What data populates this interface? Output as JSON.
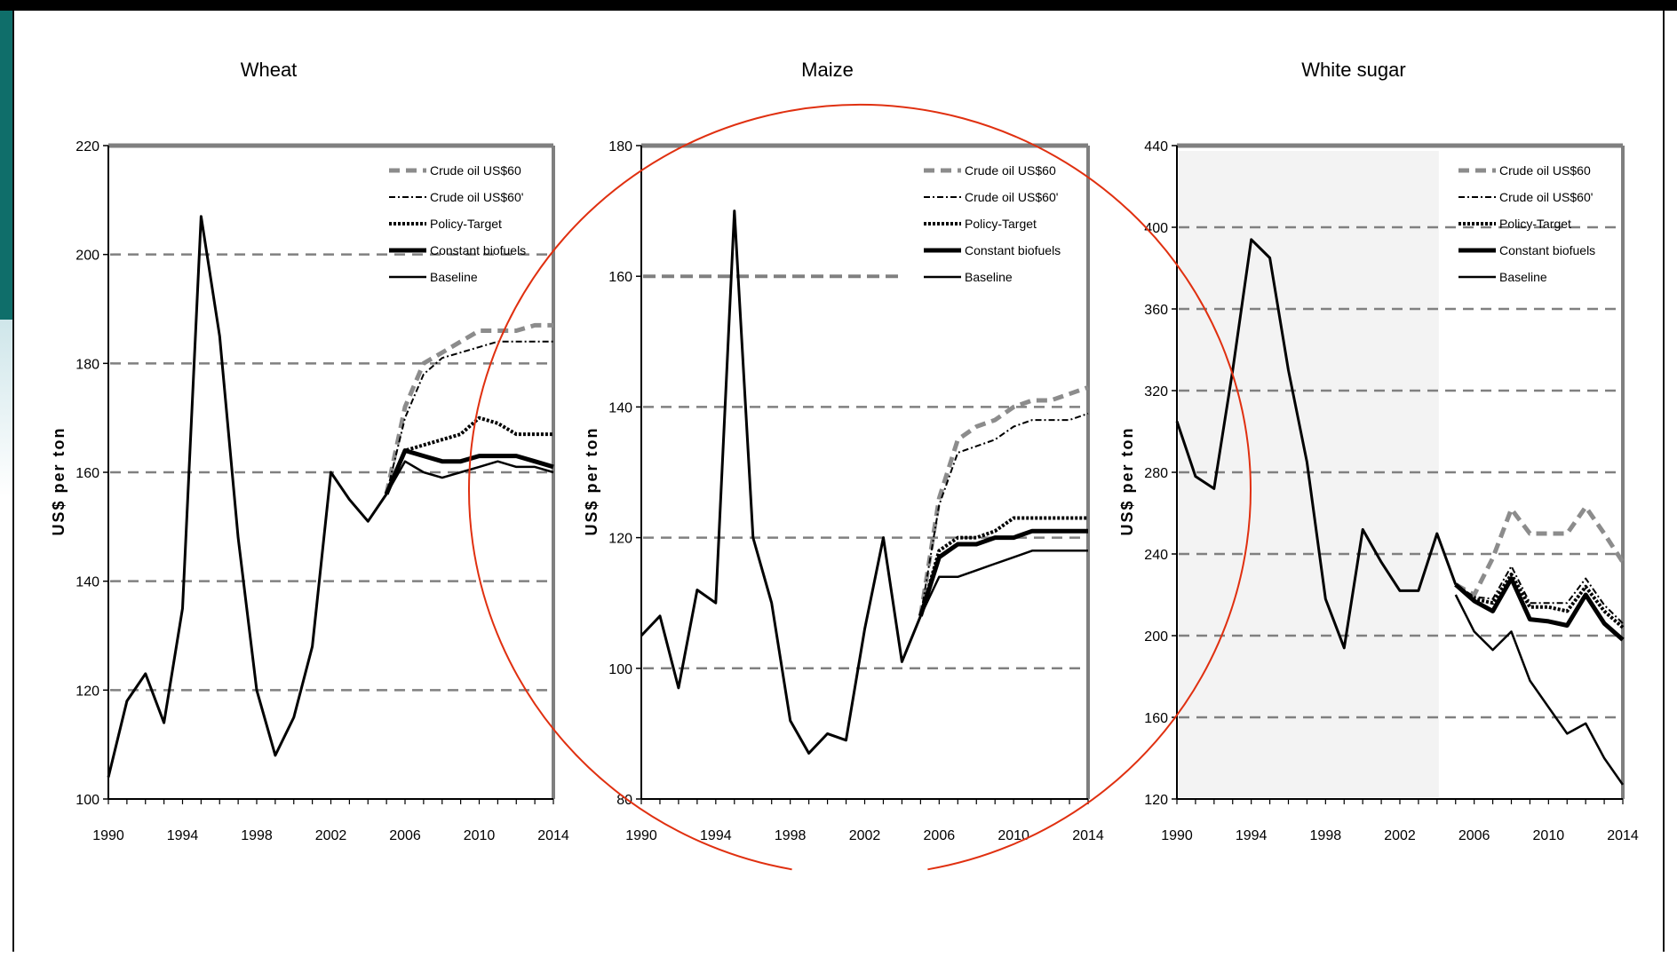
{
  "chart_data": [
    {
      "type": "line",
      "title": "Wheat",
      "ylabel": "US$ per ton",
      "xlabel": "",
      "xlim": [
        1990,
        2014
      ],
      "ylim": [
        100,
        220
      ],
      "x_ticks": [
        1990,
        1994,
        1998,
        2002,
        2006,
        2010,
        2014
      ],
      "y_ticks": [
        100,
        120,
        140,
        160,
        180,
        200,
        220
      ],
      "grid_lines": [
        120,
        140,
        160,
        180,
        200
      ],
      "legend_position": "top-right",
      "history": {
        "x": [
          1990,
          1991,
          1992,
          1993,
          1994,
          1995,
          1996,
          1997,
          1998,
          1999,
          2000,
          2001,
          2002,
          2003,
          2004,
          2005
        ],
        "y": [
          104,
          118,
          123,
          114,
          135,
          207,
          185,
          148,
          120,
          108,
          115,
          128,
          160,
          155,
          151,
          156
        ]
      },
      "series": [
        {
          "name": "Crude oil US$60",
          "style": "dashed-gray",
          "x": [
            2005,
            2006,
            2007,
            2008,
            2009,
            2010,
            2011,
            2012,
            2013,
            2014
          ],
          "y": [
            156,
            172,
            180,
            182,
            184,
            186,
            186,
            186,
            187,
            187
          ]
        },
        {
          "name": "Crude oil US$60'",
          "style": "dash-dot",
          "x": [
            2005,
            2006,
            2007,
            2008,
            2009,
            2010,
            2011,
            2012,
            2013,
            2014
          ],
          "y": [
            156,
            170,
            178,
            181,
            182,
            183,
            184,
            184,
            184,
            184
          ]
        },
        {
          "name": "Policy-Target",
          "style": "dotted",
          "x": [
            2005,
            2006,
            2007,
            2008,
            2009,
            2010,
            2011,
            2012,
            2013,
            2014
          ],
          "y": [
            156,
            164,
            165,
            166,
            167,
            170,
            169,
            167,
            167,
            167
          ]
        },
        {
          "name": "Constant biofuels",
          "style": "thick",
          "x": [
            2005,
            2006,
            2007,
            2008,
            2009,
            2010,
            2011,
            2012,
            2013,
            2014
          ],
          "y": [
            156,
            164,
            163,
            162,
            162,
            163,
            163,
            163,
            162,
            161
          ]
        },
        {
          "name": "Baseline",
          "style": "solid",
          "x": [
            2005,
            2006,
            2007,
            2008,
            2009,
            2010,
            2011,
            2012,
            2013,
            2014
          ],
          "y": [
            156,
            162,
            160,
            159,
            160,
            161,
            162,
            161,
            161,
            160
          ]
        }
      ]
    },
    {
      "type": "line",
      "title": "Maize",
      "ylabel": "US$ per ton",
      "xlabel": "",
      "xlim": [
        1990,
        2014
      ],
      "ylim": [
        80,
        180
      ],
      "x_ticks": [
        1990,
        1994,
        1998,
        2002,
        2006,
        2010,
        2014
      ],
      "y_ticks": [
        80,
        100,
        120,
        140,
        160,
        180
      ],
      "grid_lines": [
        100,
        120,
        140
      ],
      "grid_partial": {
        "y": 160,
        "x_end": 2004
      },
      "legend_position": "top-right",
      "history": {
        "x": [
          1990,
          1991,
          1992,
          1993,
          1994,
          1995,
          1996,
          1997,
          1998,
          1999,
          2000,
          2001,
          2002,
          2003,
          2004,
          2005
        ],
        "y": [
          105,
          108,
          97,
          112,
          110,
          170,
          120,
          110,
          92,
          87,
          90,
          89,
          106,
          120,
          101,
          108
        ]
      },
      "series": [
        {
          "name": "Crude oil US$60",
          "style": "dashed-gray",
          "x": [
            2005,
            2006,
            2007,
            2008,
            2009,
            2010,
            2011,
            2012,
            2013,
            2014
          ],
          "y": [
            108,
            126,
            135,
            137,
            138,
            140,
            141,
            141,
            142,
            143
          ]
        },
        {
          "name": "Crude oil US$60'",
          "style": "dash-dot",
          "x": [
            2005,
            2006,
            2007,
            2008,
            2009,
            2010,
            2011,
            2012,
            2013,
            2014
          ],
          "y": [
            108,
            125,
            133,
            134,
            135,
            137,
            138,
            138,
            138,
            139
          ]
        },
        {
          "name": "Policy-Target",
          "style": "dotted",
          "x": [
            2005,
            2006,
            2007,
            2008,
            2009,
            2010,
            2011,
            2012,
            2013,
            2014
          ],
          "y": [
            108,
            118,
            120,
            120,
            121,
            123,
            123,
            123,
            123,
            123
          ]
        },
        {
          "name": "Constant biofuels",
          "style": "thick",
          "x": [
            2005,
            2006,
            2007,
            2008,
            2009,
            2010,
            2011,
            2012,
            2013,
            2014
          ],
          "y": [
            108,
            117,
            119,
            119,
            120,
            120,
            121,
            121,
            121,
            121
          ]
        },
        {
          "name": "Baseline",
          "style": "solid",
          "x": [
            2005,
            2006,
            2007,
            2008,
            2009,
            2010,
            2011,
            2012,
            2013,
            2014
          ],
          "y": [
            108,
            114,
            114,
            115,
            116,
            117,
            118,
            118,
            118,
            118
          ]
        }
      ]
    },
    {
      "type": "line",
      "title": "White sugar",
      "ylabel": "US$ per ton",
      "xlabel": "",
      "xlim": [
        1990,
        2014
      ],
      "ylim": [
        120,
        440
      ],
      "x_ticks": [
        1990,
        1994,
        1998,
        2002,
        2006,
        2010,
        2014
      ],
      "y_ticks": [
        120,
        160,
        200,
        240,
        280,
        320,
        360,
        400,
        440
      ],
      "grid_lines": [
        160,
        200,
        240,
        280,
        320,
        360,
        400
      ],
      "legend_position": "top-right",
      "history": {
        "x": [
          1990,
          1991,
          1992,
          1993,
          1994,
          1995,
          1996,
          1997,
          1998,
          1999,
          2000,
          2001,
          2002,
          2003,
          2004,
          2005
        ],
        "y": [
          305,
          278,
          272,
          330,
          394,
          385,
          330,
          285,
          218,
          194,
          252,
          236,
          222,
          222,
          250,
          225
        ]
      },
      "series": [
        {
          "name": "Crude oil US$60",
          "style": "dashed-gray",
          "x": [
            2005,
            2006,
            2007,
            2008,
            2009,
            2010,
            2011,
            2012,
            2013,
            2014
          ],
          "y": [
            225,
            220,
            238,
            262,
            250,
            250,
            250,
            263,
            250,
            236
          ]
        },
        {
          "name": "Crude oil US$60'",
          "style": "dash-dot",
          "x": [
            2005,
            2006,
            2007,
            2008,
            2009,
            2010,
            2011,
            2012,
            2013,
            2014
          ],
          "y": [
            225,
            219,
            218,
            234,
            216,
            216,
            216,
            228,
            215,
            206
          ]
        },
        {
          "name": "Policy-Target",
          "style": "dotted",
          "x": [
            2005,
            2006,
            2007,
            2008,
            2009,
            2010,
            2011,
            2012,
            2013,
            2014
          ],
          "y": [
            225,
            218,
            216,
            230,
            214,
            214,
            212,
            224,
            212,
            204
          ]
        },
        {
          "name": "Constant biofuels",
          "style": "thick",
          "x": [
            2005,
            2006,
            2007,
            2008,
            2009,
            2010,
            2011,
            2012,
            2013,
            2014
          ],
          "y": [
            225,
            217,
            212,
            228,
            208,
            207,
            205,
            220,
            206,
            198
          ]
        },
        {
          "name": "Baseline",
          "style": "solid",
          "x": [
            2005,
            2006,
            2007,
            2008,
            2009,
            2010,
            2011,
            2012,
            2013,
            2014
          ],
          "y": [
            220,
            202,
            193,
            202,
            178,
            165,
            152,
            157,
            140,
            127
          ]
        }
      ]
    }
  ],
  "colors": {
    "frame": "#000000",
    "accent_bar": "#0f6e6a",
    "plot_border": "#7f7f7f",
    "grid": "#808080",
    "annotation_circle": "#e03010"
  }
}
